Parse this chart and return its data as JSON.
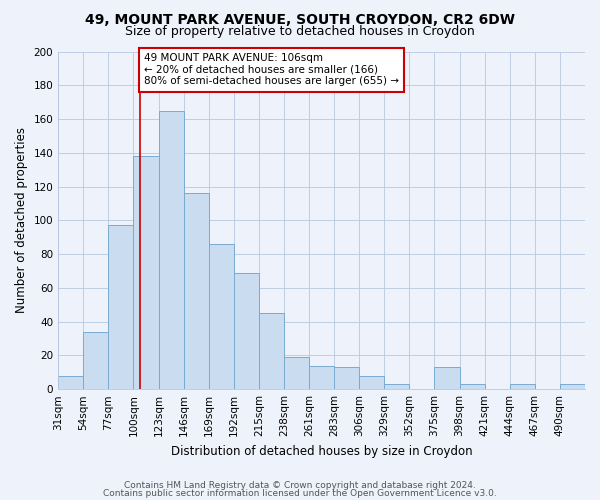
{
  "title": "49, MOUNT PARK AVENUE, SOUTH CROYDON, CR2 6DW",
  "subtitle": "Size of property relative to detached houses in Croydon",
  "xlabel": "Distribution of detached houses by size in Croydon",
  "ylabel": "Number of detached properties",
  "footer_line1": "Contains HM Land Registry data © Crown copyright and database right 2024.",
  "footer_line2": "Contains public sector information licensed under the Open Government Licence v3.0.",
  "bin_labels": [
    "31sqm",
    "54sqm",
    "77sqm",
    "100sqm",
    "123sqm",
    "146sqm",
    "169sqm",
    "192sqm",
    "215sqm",
    "238sqm",
    "261sqm",
    "283sqm",
    "306sqm",
    "329sqm",
    "352sqm",
    "375sqm",
    "398sqm",
    "421sqm",
    "444sqm",
    "467sqm",
    "490sqm"
  ],
  "bar_heights": [
    8,
    34,
    97,
    138,
    165,
    116,
    86,
    69,
    45,
    19,
    14,
    13,
    8,
    3,
    0,
    13,
    3,
    0,
    3,
    0,
    3
  ],
  "bar_color": "#c9dcf0",
  "bar_edge_color": "#7aaad0",
  "vline_x_index": 3,
  "vline_color": "#cc0000",
  "annotation_text": "49 MOUNT PARK AVENUE: 106sqm\n← 20% of detached houses are smaller (166)\n80% of semi-detached houses are larger (655) →",
  "annotation_box_color": "#ffffff",
  "annotation_box_edge": "#cc0000",
  "ylim": [
    0,
    200
  ],
  "yticks": [
    0,
    20,
    40,
    60,
    80,
    100,
    120,
    140,
    160,
    180,
    200
  ],
  "background_color": "#eef2fa",
  "grid_color": "#b8c8e0",
  "title_fontsize": 10,
  "subtitle_fontsize": 9,
  "axis_label_fontsize": 8.5,
  "tick_fontsize": 7.5,
  "annotation_fontsize": 7.5,
  "footer_fontsize": 6.5
}
